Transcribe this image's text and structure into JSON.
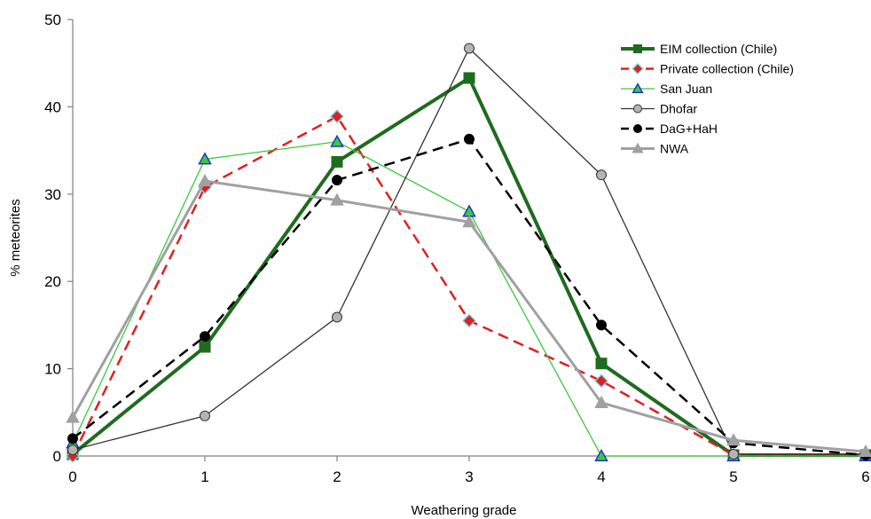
{
  "chart_data": {
    "type": "line",
    "title": "",
    "xlabel": "Weathering grade",
    "ylabel": "% meteorites",
    "x": [
      0,
      1,
      2,
      3,
      4,
      5,
      6
    ],
    "xlim": [
      0,
      6
    ],
    "ylim": [
      0,
      50
    ],
    "x_ticks": [
      "0",
      "1",
      "2",
      "3",
      "4",
      "5",
      "6"
    ],
    "y_ticks": [
      "0",
      "10",
      "20",
      "30",
      "40",
      "50"
    ],
    "grid": false,
    "legend_position": "top-right",
    "series": [
      {
        "name": "EIM collection (Chile)",
        "values": [
          0.2,
          12.5,
          33.7,
          43.3,
          10.6,
          0.1,
          0.1
        ],
        "color": "#1f6b1f",
        "marker": "square",
        "dash": "solid"
      },
      {
        "name": "Private collection (Chile)",
        "values": [
          0,
          30.8,
          38.9,
          15.5,
          8.6,
          0.1,
          0.1
        ],
        "color": "#e02020",
        "marker": "diamond",
        "dash": "dashed"
      },
      {
        "name": "San Juan",
        "values": [
          1.5,
          34.0,
          36.0,
          28.0,
          0,
          0,
          0
        ],
        "color": "#3cc83c",
        "marker": "triangle",
        "dash": "solid"
      },
      {
        "name": "Dhofar",
        "values": [
          0.7,
          4.6,
          15.9,
          46.7,
          32.2,
          0.2,
          0.2
        ],
        "color": "#333333",
        "marker": "circle",
        "dash": "solid"
      },
      {
        "name": "DaG+HaH",
        "values": [
          2.0,
          13.7,
          31.6,
          36.3,
          15.0,
          1.5,
          0.1
        ],
        "color": "#000000",
        "marker": "circle",
        "dash": "dashed"
      },
      {
        "name": "NWA",
        "values": [
          4.4,
          31.5,
          29.3,
          26.8,
          6.1,
          1.8,
          0.5
        ],
        "color": "#a0a0a0",
        "marker": "triangle",
        "dash": "solid"
      }
    ]
  }
}
